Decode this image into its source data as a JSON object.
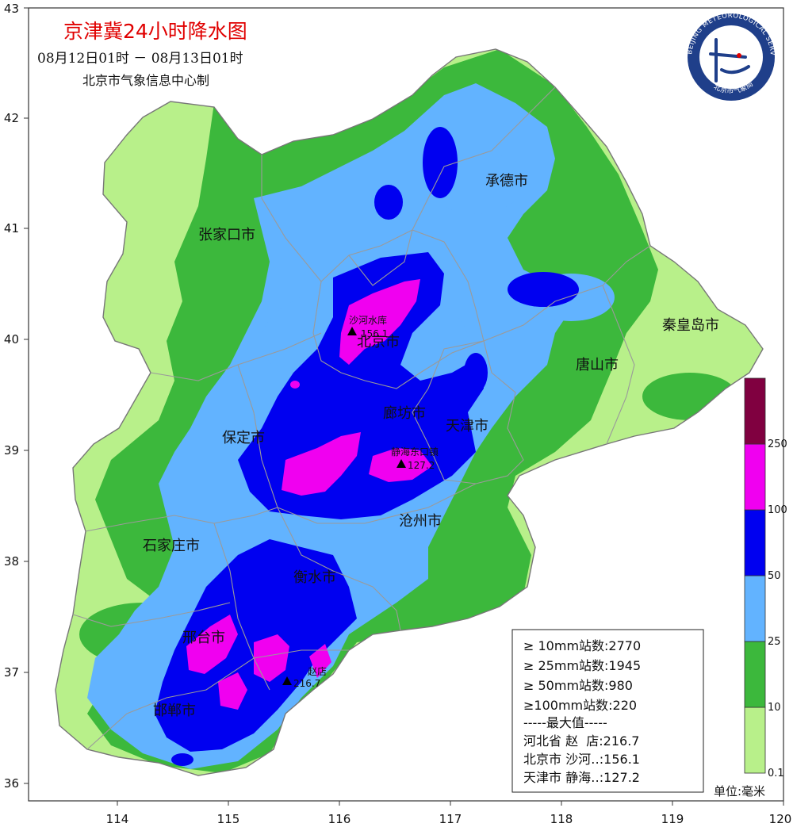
{
  "header": {
    "title": "京津冀24小时降水图",
    "period": "08月12日01时 － 08月13日01时",
    "producer": "北京市气象信息中心制"
  },
  "logo": {
    "ring_text": "BEIJING METEOROLOGICAL SERVICE",
    "inner_text": "北京市气象局"
  },
  "axes": {
    "x_ticks": [
      "114",
      "115",
      "116",
      "117",
      "118",
      "119",
      "120"
    ],
    "y_ticks": [
      "36",
      "37",
      "38",
      "39",
      "40",
      "41",
      "42",
      "43"
    ]
  },
  "cities": [
    {
      "name": "张家口市"
    },
    {
      "name": "承德市"
    },
    {
      "name": "北京市"
    },
    {
      "name": "秦皇岛市"
    },
    {
      "name": "唐山市"
    },
    {
      "name": "廊坊市"
    },
    {
      "name": "天津市"
    },
    {
      "name": "保定市"
    },
    {
      "name": "沧州市"
    },
    {
      "name": "石家庄市"
    },
    {
      "name": "衡水市"
    },
    {
      "name": "邢台市"
    },
    {
      "name": "邯郸市"
    }
  ],
  "stations": [
    {
      "name": "沙河水库",
      "value": "156.1"
    },
    {
      "name": "静海东口镇",
      "value": "127.2"
    },
    {
      "name": "赵店",
      "value": "216.7"
    }
  ],
  "stats": {
    "counts": [
      "≥ 10mm站数:2770",
      "≥ 25mm站数:1945",
      "≥ 50mm站数:980",
      "≥100mm站数:220"
    ],
    "max_header": "-----最大值-----",
    "max_rows": [
      "河北省 赵  店:216.7",
      "北京市 沙河‥:156.1",
      "天津市 静海‥:127.2"
    ]
  },
  "legend": {
    "colors": [
      "#b8f08a",
      "#3cb83c",
      "#62b3ff",
      "#0000f0",
      "#f000f0",
      "#800040"
    ],
    "labels": [
      "0.1",
      "10",
      "25",
      "50",
      "100",
      "250"
    ],
    "unit": "单位:毫米"
  }
}
